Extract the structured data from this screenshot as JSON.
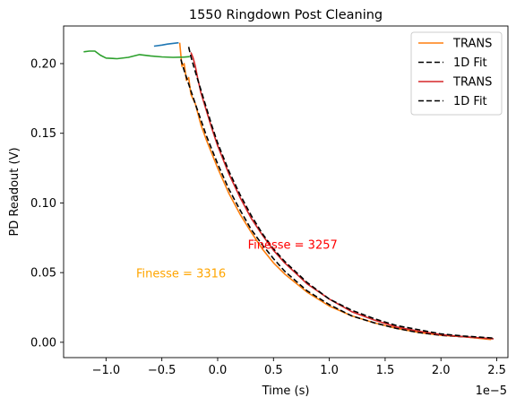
{
  "chart_data": {
    "type": "line",
    "title": "1550 Ringdown Post Cleaning",
    "xlabel": "Time (s)",
    "ylabel": "PD Readout (V)",
    "x_offset_label": "1e−5",
    "xlim": [
      -1.38,
      2.6
    ],
    "ylim": [
      -0.011,
      0.227
    ],
    "x_ticks": [
      -1.0,
      -0.5,
      0.0,
      0.5,
      1.0,
      1.5,
      2.0,
      2.5
    ],
    "x_tick_labels": [
      "−1.0",
      "−0.5",
      "0.0",
      "0.5",
      "1.0",
      "1.5",
      "2.0",
      "2.5"
    ],
    "y_ticks": [
      0.0,
      0.05,
      0.1,
      0.15,
      0.2
    ],
    "y_tick_labels": [
      "0.00",
      "0.05",
      "0.10",
      "0.15",
      "0.20"
    ],
    "grid": false,
    "legend_position": "top-right",
    "series": [
      {
        "color": "#1f77b4",
        "style": "solid",
        "x": [
          -0.57,
          -0.5,
          -0.45,
          -0.4,
          -0.35
        ],
        "y": [
          0.2125,
          0.2133,
          0.214,
          0.2145,
          0.215
        ]
      },
      {
        "name": "TRANS",
        "color": "#ff7f0e",
        "style": "solid",
        "x": [
          -0.34,
          -0.32,
          -0.3,
          -0.28,
          -0.26,
          -0.24,
          -0.2,
          -0.15,
          -0.1,
          0.0,
          0.1,
          0.2,
          0.3,
          0.4,
          0.5,
          0.6,
          0.8,
          1.0,
          1.2,
          1.4,
          1.6,
          1.8,
          2.0,
          2.2,
          2.45
        ],
        "y": [
          0.215,
          0.198,
          0.2,
          0.188,
          0.19,
          0.178,
          0.171,
          0.156,
          0.145,
          0.125,
          0.107,
          0.092,
          0.079,
          0.067,
          0.057,
          0.049,
          0.036,
          0.026,
          0.019,
          0.014,
          0.01,
          0.007,
          0.005,
          0.004,
          0.002
        ]
      },
      {
        "name": "1D Fit",
        "color": "#000000",
        "style": "dashed",
        "x": [
          -0.33,
          -0.3,
          -0.25,
          -0.2,
          -0.1,
          0.0,
          0.1,
          0.2,
          0.3,
          0.4,
          0.5,
          0.6,
          0.8,
          1.0,
          1.2,
          1.4,
          1.6,
          1.8,
          2.0,
          2.2,
          2.47
        ],
        "y": [
          0.203,
          0.195,
          0.183,
          0.171,
          0.148,
          0.128,
          0.11,
          0.095,
          0.081,
          0.07,
          0.06,
          0.051,
          0.037,
          0.027,
          0.019,
          0.014,
          0.01,
          0.007,
          0.005,
          0.004,
          0.0025
        ]
      },
      {
        "color": "#2ca02c",
        "style": "solid",
        "x": [
          -1.2,
          -1.15,
          -1.1,
          -1.05,
          -1.0,
          -0.9,
          -0.8,
          -0.7,
          -0.6,
          -0.5,
          -0.4,
          -0.3,
          -0.25
        ],
        "y": [
          0.2085,
          0.209,
          0.209,
          0.206,
          0.204,
          0.2035,
          0.2045,
          0.2065,
          0.2055,
          0.2048,
          0.2045,
          0.2047,
          0.205
        ]
      },
      {
        "name": "TRANS",
        "color": "#d62728",
        "style": "solid",
        "x": [
          -0.24,
          -0.22,
          -0.2,
          -0.18,
          -0.15,
          -0.1,
          -0.05,
          0.0,
          0.1,
          0.2,
          0.3,
          0.4,
          0.5,
          0.6,
          0.8,
          1.0,
          1.2,
          1.4,
          1.6,
          1.8,
          2.0,
          2.2,
          2.47
        ],
        "y": [
          0.208,
          0.204,
          0.198,
          0.19,
          0.179,
          0.166,
          0.153,
          0.141,
          0.121,
          0.104,
          0.089,
          0.077,
          0.066,
          0.057,
          0.042,
          0.031,
          0.022,
          0.016,
          0.011,
          0.008,
          0.0055,
          0.004,
          0.0025
        ]
      },
      {
        "name": "1D Fit",
        "color": "#000000",
        "style": "dashed",
        "x": [
          -0.26,
          -0.24,
          -0.2,
          -0.15,
          -0.1,
          -0.05,
          0.0,
          0.1,
          0.2,
          0.3,
          0.4,
          0.5,
          0.6,
          0.8,
          1.0,
          1.2,
          1.4,
          1.6,
          1.8,
          2.0,
          2.2,
          2.47
        ],
        "y": [
          0.212,
          0.205,
          0.194,
          0.181,
          0.168,
          0.155,
          0.143,
          0.123,
          0.106,
          0.091,
          0.078,
          0.067,
          0.058,
          0.043,
          0.031,
          0.023,
          0.017,
          0.012,
          0.009,
          0.006,
          0.0045,
          0.003
        ]
      }
    ],
    "annotations": [
      {
        "text": "Finesse = 3316",
        "x": -0.73,
        "y": 0.0465,
        "color": "#ffa500"
      },
      {
        "text": "Finesse = 3257",
        "x": 0.27,
        "y": 0.067,
        "color": "#ff0000"
      }
    ]
  }
}
